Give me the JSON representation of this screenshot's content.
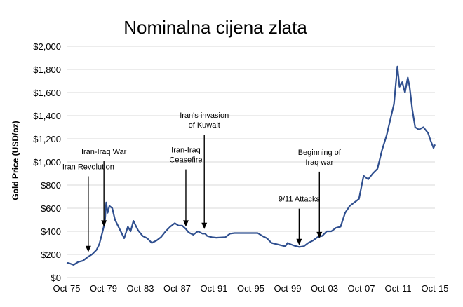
{
  "chart_data": {
    "type": "line",
    "title": "Nominalna cijena zlata",
    "ylabel": "Gold Price (USD/oz)",
    "xlabel": "",
    "y_ticks": [
      "$0",
      "$200",
      "$400",
      "$600",
      "$800",
      "$1,000",
      "$1,200",
      "$1,400",
      "$1,600",
      "$1,800",
      "$2,000"
    ],
    "x_ticks": [
      "Oct-75",
      "Oct-79",
      "Oct-83",
      "Oct-87",
      "Oct-91",
      "Oct-95",
      "Oct-99",
      "Oct-03",
      "Oct-07",
      "Oct-11",
      "Oct-15"
    ],
    "ylim": [
      0,
      2000
    ],
    "xlim": [
      1975.75,
      2015.75
    ],
    "grid": "horizontal",
    "line_color": "#2f4f8f",
    "series": [
      {
        "x": [
          1975.0,
          1975.5,
          1976.0,
          1976.5,
          1977.0,
          1977.5,
          1978.0,
          1978.5,
          1979.0,
          1979.3,
          1979.6,
          1979.9,
          1980.05,
          1980.2,
          1980.4,
          1980.7,
          1981.0,
          1981.5,
          1982.0,
          1982.4,
          1982.7,
          1983.0,
          1983.5,
          1984.0,
          1984.5,
          1985.0,
          1985.5,
          1986.0,
          1986.5,
          1987.0,
          1987.5,
          1987.9,
          1988.3,
          1988.7,
          1989.0,
          1989.5,
          1990.0,
          1990.5,
          1990.8,
          1991.0,
          1991.5,
          1992.0,
          1993.0,
          1993.5,
          1994.0,
          1995.0,
          1996.0,
          1996.5,
          1997.0,
          1997.5,
          1998.0,
          1999.0,
          1999.5,
          1999.75,
          2000.0,
          2000.5,
          2001.0,
          2001.5,
          2002.0,
          2002.5,
          2003.0,
          2003.5,
          2004.0,
          2004.5,
          2005.0,
          2005.5,
          2006.0,
          2006.5,
          2007.0,
          2007.5,
          2008.0,
          2008.5,
          2009.0,
          2009.5,
          2010.0,
          2010.5,
          2011.0,
          2011.3,
          2011.67,
          2011.9,
          2012.2,
          2012.5,
          2012.8,
          2013.0,
          2013.3,
          2013.6,
          2014.0,
          2014.5,
          2015.0,
          2015.3,
          2015.6,
          2015.75
        ],
        "y": [
          145,
          130,
          125,
          110,
          135,
          145,
          175,
          200,
          240,
          290,
          380,
          480,
          650,
          560,
          620,
          600,
          500,
          420,
          340,
          440,
          400,
          490,
          410,
          360,
          340,
          300,
          320,
          350,
          400,
          440,
          470,
          450,
          450,
          420,
          390,
          370,
          400,
          380,
          380,
          360,
          350,
          345,
          350,
          380,
          385,
          385,
          385,
          385,
          360,
          340,
          300,
          280,
          270,
          300,
          290,
          275,
          265,
          270,
          300,
          320,
          350,
          360,
          400,
          400,
          430,
          440,
          560,
          620,
          650,
          680,
          880,
          850,
          900,
          940,
          1100,
          1230,
          1400,
          1500,
          1825,
          1650,
          1690,
          1600,
          1730,
          1650,
          1450,
          1300,
          1280,
          1300,
          1250,
          1180,
          1120,
          1150
        ]
      }
    ],
    "annotations": [
      {
        "lines": [
          "Iran Revolution"
        ],
        "x": 1978.1,
        "y_text": 900,
        "y_arrow": 220
      },
      {
        "lines": [
          "Iran-Iraq War"
        ],
        "x": 1979.8,
        "y_text": 1030,
        "y_arrow": 440
      },
      {
        "lines": [
          "Iran-Iraq",
          "Ceasefire"
        ],
        "x": 1988.7,
        "y_text": 960,
        "y_arrow": 440
      },
      {
        "lines": [
          "Iran's invasion",
          "of Kuwait"
        ],
        "x": 1990.7,
        "y_text": 1260,
        "y_arrow": 420
      },
      {
        "lines": [
          "9/11 Attacks"
        ],
        "x": 2001.0,
        "y_text": 620,
        "y_arrow": 280
      },
      {
        "lines": [
          "Beginning of",
          "Iraq war"
        ],
        "x": 2003.2,
        "y_text": 940,
        "y_arrow": 340
      }
    ]
  }
}
